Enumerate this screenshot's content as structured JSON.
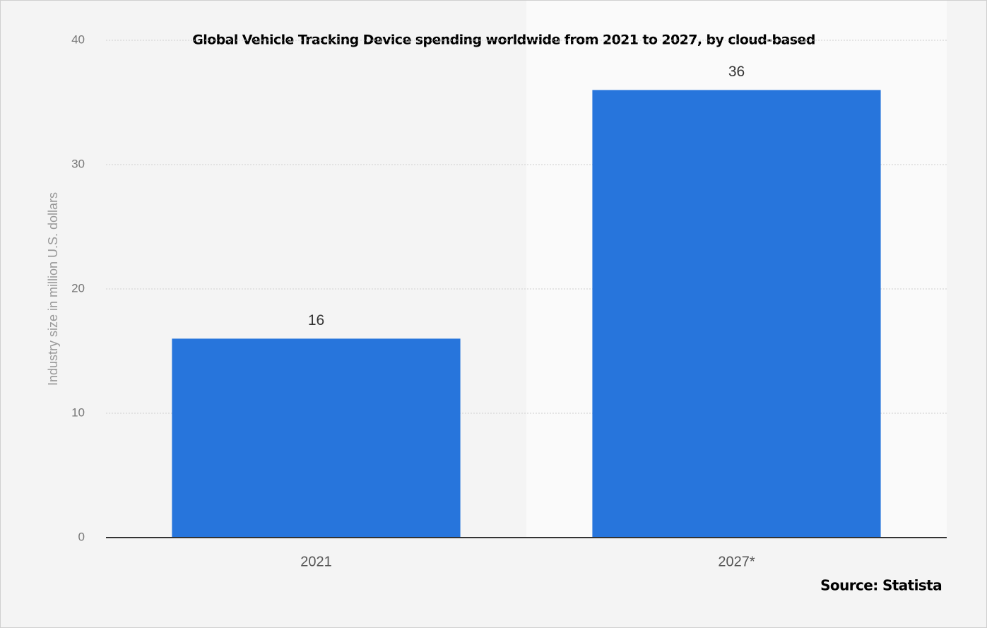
{
  "chart_data": {
    "type": "bar",
    "title": "Global Vehicle Tracking Device spending worldwide from 2021 to 2027, by cloud-based",
    "y_label": "Industry size in million U.S. dollars",
    "source": "Source: Statista",
    "categories": [
      "2021",
      "2027*"
    ],
    "values": [
      16,
      36
    ],
    "color": "#2775dc",
    "ylim": [
      0,
      40
    ],
    "yticks": [
      0,
      10,
      20,
      30,
      40
    ],
    "grid": true
  }
}
